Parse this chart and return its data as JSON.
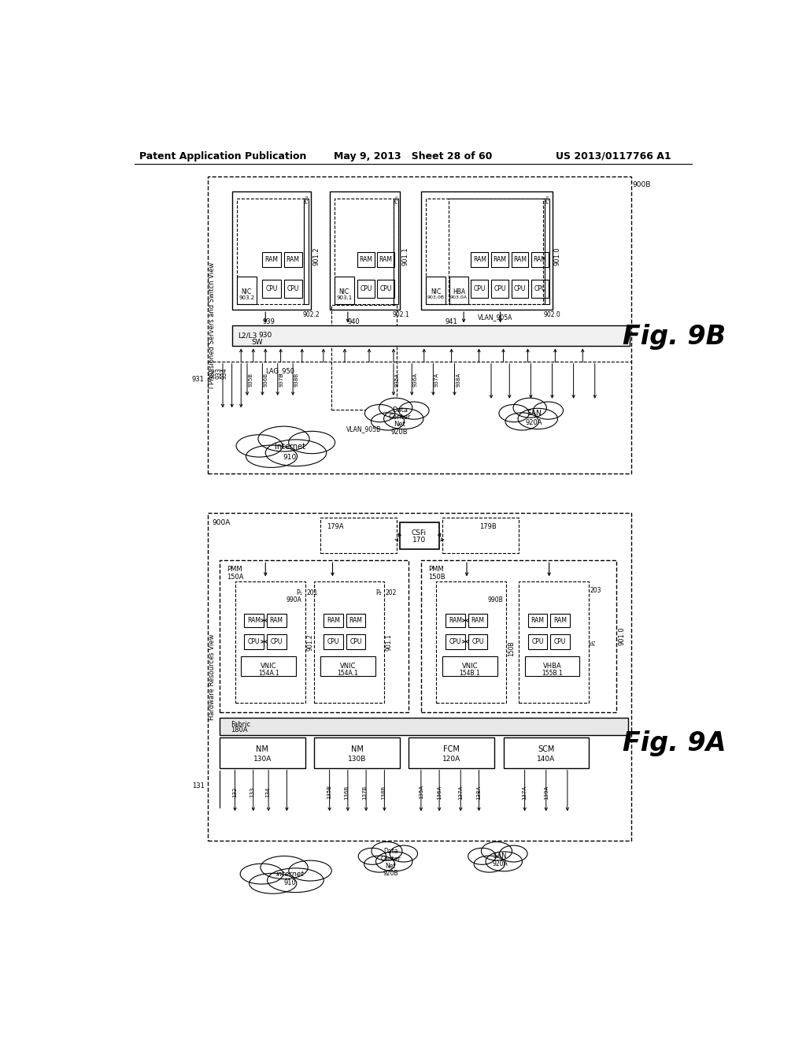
{
  "title_left": "Patent Application Publication",
  "title_center": "May 9, 2013   Sheet 28 of 60",
  "title_right": "US 2013/0117766 A1",
  "bg_color": "#ffffff"
}
